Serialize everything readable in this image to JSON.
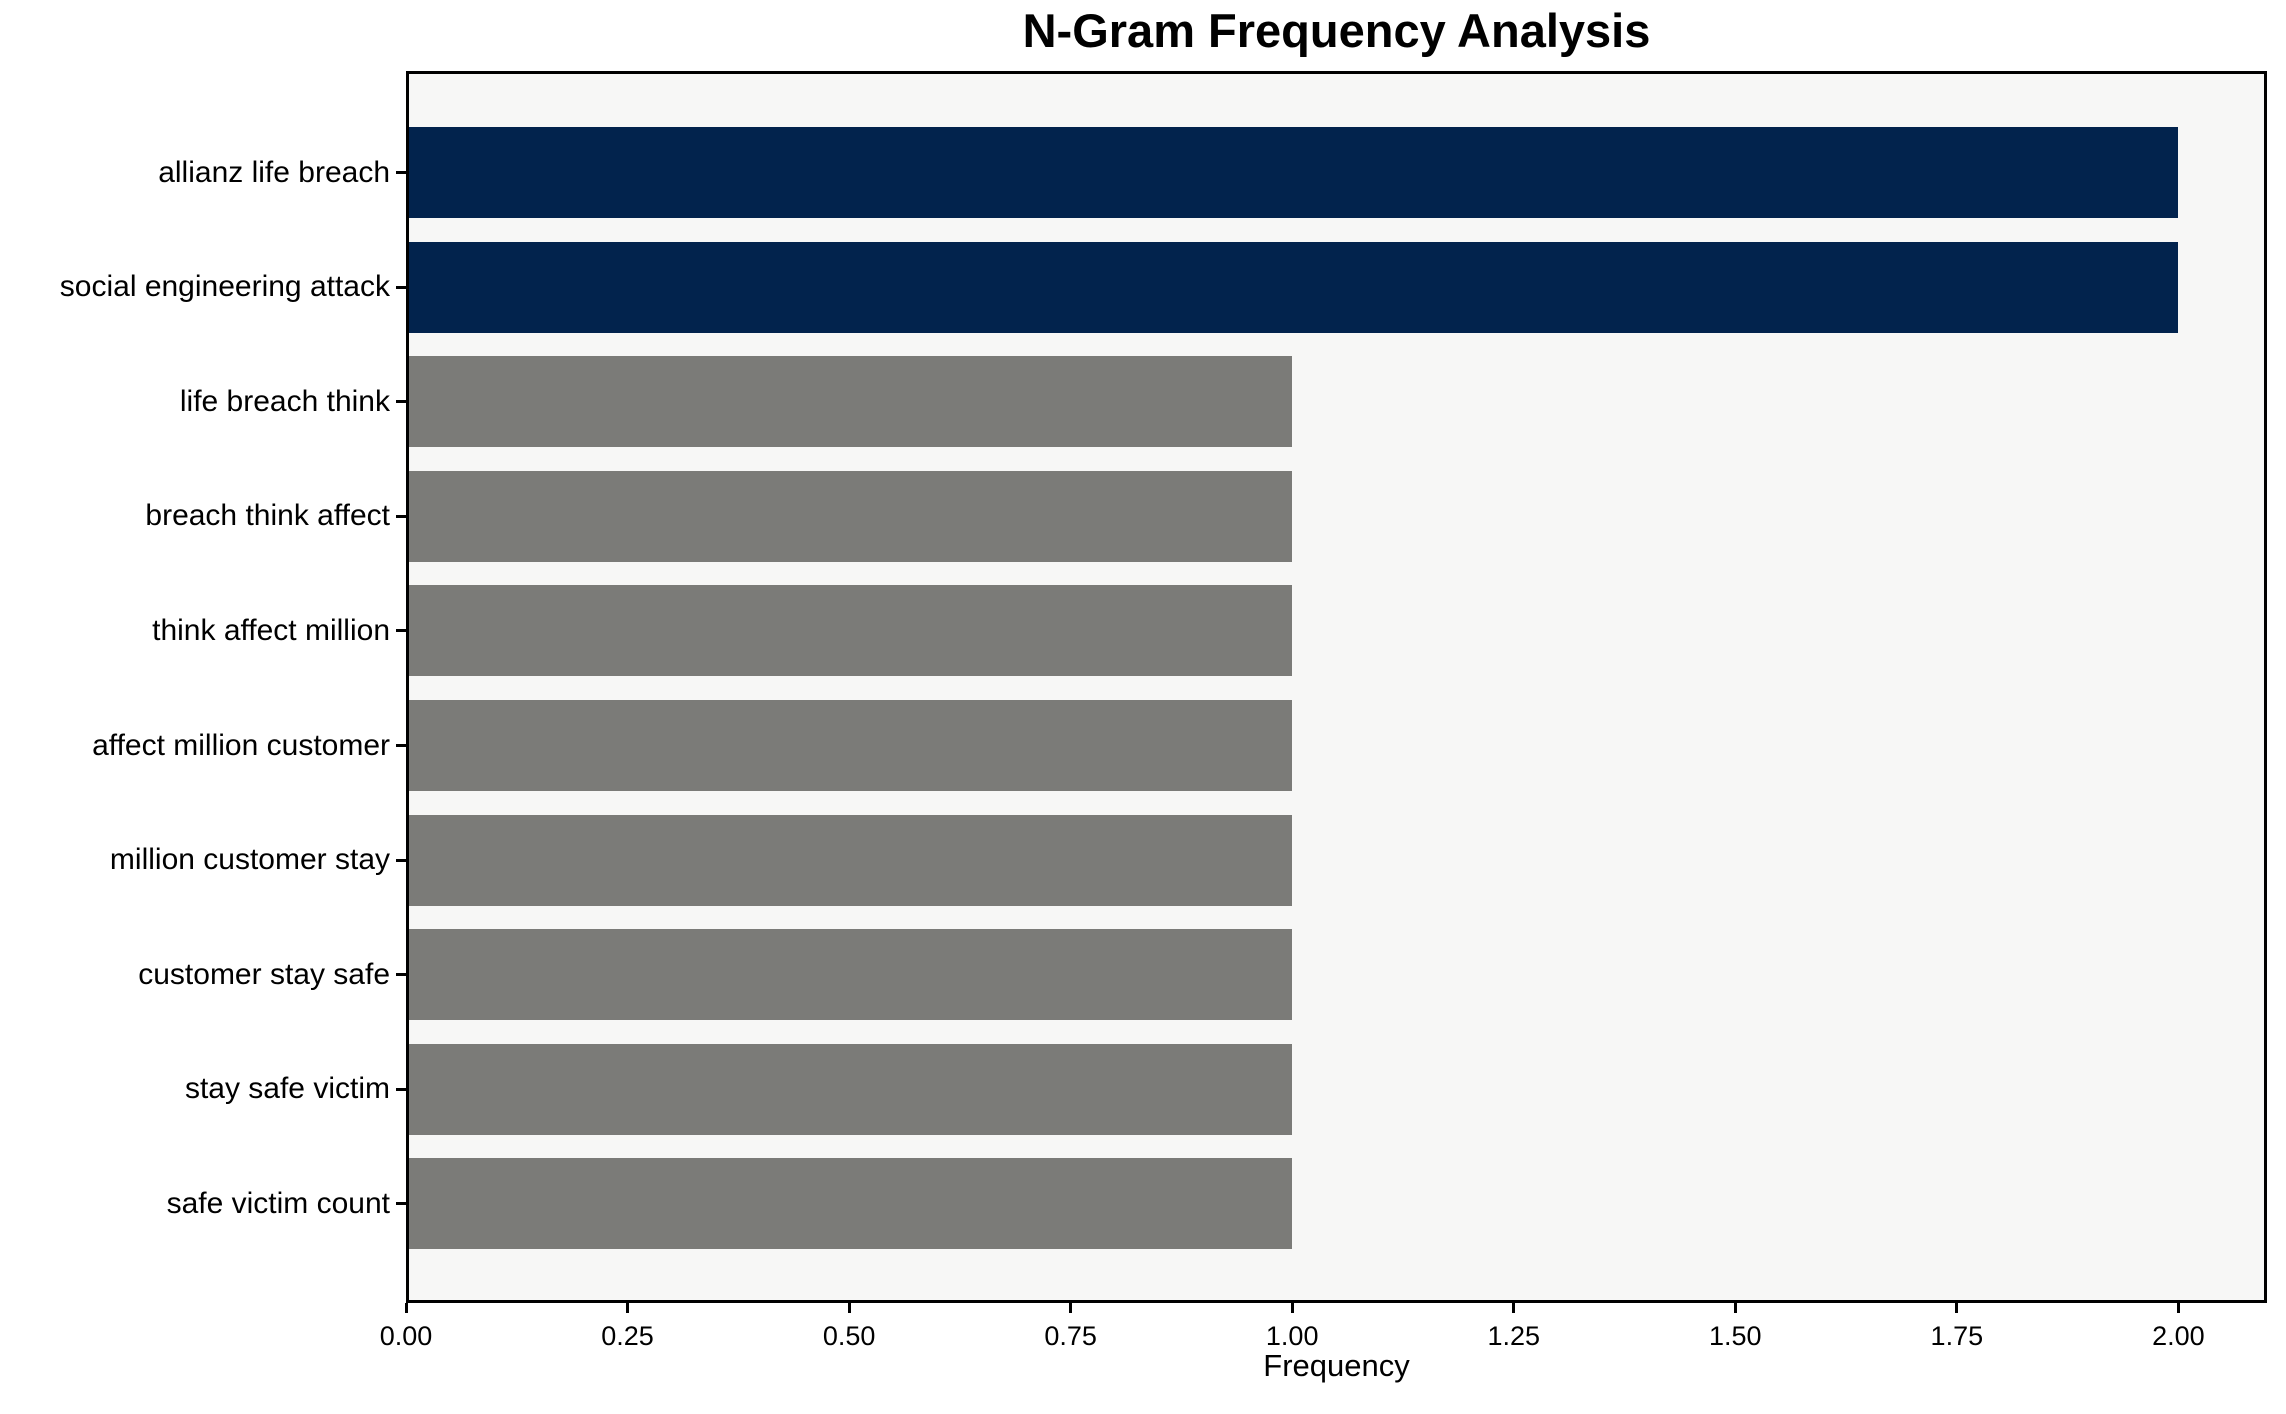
{
  "chart_data": {
    "type": "bar",
    "orientation": "horizontal",
    "title": "N-Gram Frequency Analysis",
    "xlabel": "Frequency",
    "ylabel": "",
    "categories": [
      "allianz life breach",
      "social engineering attack",
      "life breach think",
      "breach think affect",
      "think affect million",
      "affect million customer",
      "million customer stay",
      "customer stay safe",
      "stay safe victim",
      "safe victim count"
    ],
    "values": [
      2,
      2,
      1,
      1,
      1,
      1,
      1,
      1,
      1,
      1
    ],
    "bar_colors": [
      "#02234d",
      "#02234d",
      "#7b7b78",
      "#7b7b78",
      "#7b7b78",
      "#7b7b78",
      "#7b7b78",
      "#7b7b78",
      "#7b7b78",
      "#7b7b78"
    ],
    "xlim": [
      0,
      2.1
    ],
    "xticks": [
      {
        "value": 0.0,
        "label": "0.00"
      },
      {
        "value": 0.25,
        "label": "0.25"
      },
      {
        "value": 0.5,
        "label": "0.50"
      },
      {
        "value": 0.75,
        "label": "0.75"
      },
      {
        "value": 1.0,
        "label": "1.00"
      },
      {
        "value": 1.25,
        "label": "1.25"
      },
      {
        "value": 1.5,
        "label": "1.50"
      },
      {
        "value": 1.75,
        "label": "1.75"
      },
      {
        "value": 2.0,
        "label": "2.00"
      }
    ],
    "grid": false,
    "legend": "none",
    "colors": {
      "highlight_bar": "#02234d",
      "default_bar": "#7b7b78",
      "plot_background": "#f7f7f6",
      "figure_background": "#ffffff",
      "axis": "#000000",
      "text": "#000000"
    }
  }
}
